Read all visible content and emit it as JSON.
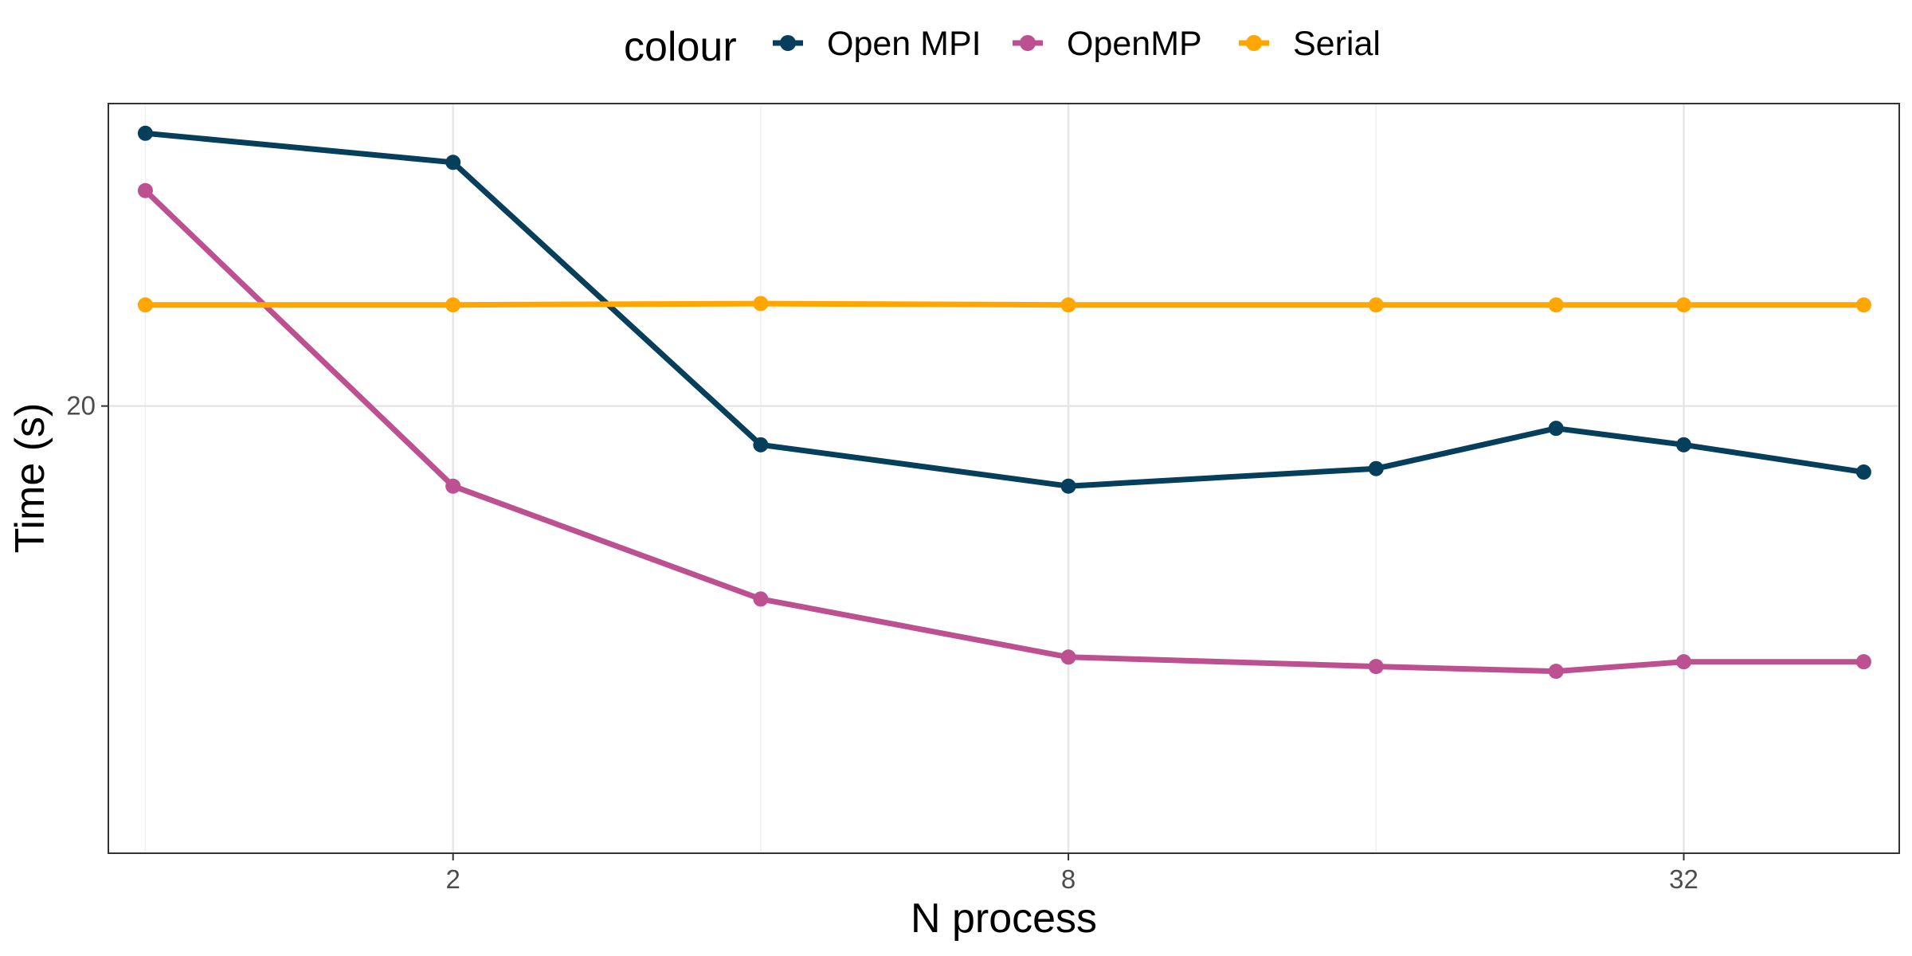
{
  "chart_data": {
    "type": "line",
    "xlabel": "N process",
    "ylabel": "Time (s)",
    "x_scale": "log2",
    "y_scale": "log",
    "x": [
      1,
      2,
      4,
      8,
      16,
      24,
      32,
      48
    ],
    "xlim": [
      0.92,
      52
    ],
    "ylim": [
      9.8,
      32.4
    ],
    "x_ticks": [
      2,
      8,
      32
    ],
    "y_ticks": [
      20
    ],
    "grid": true,
    "legend": {
      "title": "colour",
      "position": "top"
    },
    "series": [
      {
        "name": "Open MPI",
        "color": "#063f5c",
        "values": [
          30.9,
          29.5,
          18.8,
          17.6,
          18.1,
          19.3,
          18.8,
          18.0
        ]
      },
      {
        "name": "OpenMP",
        "color": "#bc5090",
        "values": [
          28.2,
          17.6,
          14.7,
          13.4,
          13.2,
          13.1,
          13.3,
          13.3
        ]
      },
      {
        "name": "Serial",
        "color": "#ffa600",
        "values": [
          23.5,
          23.5,
          23.55,
          23.5,
          23.5,
          23.5,
          23.5,
          23.5
        ]
      }
    ]
  }
}
